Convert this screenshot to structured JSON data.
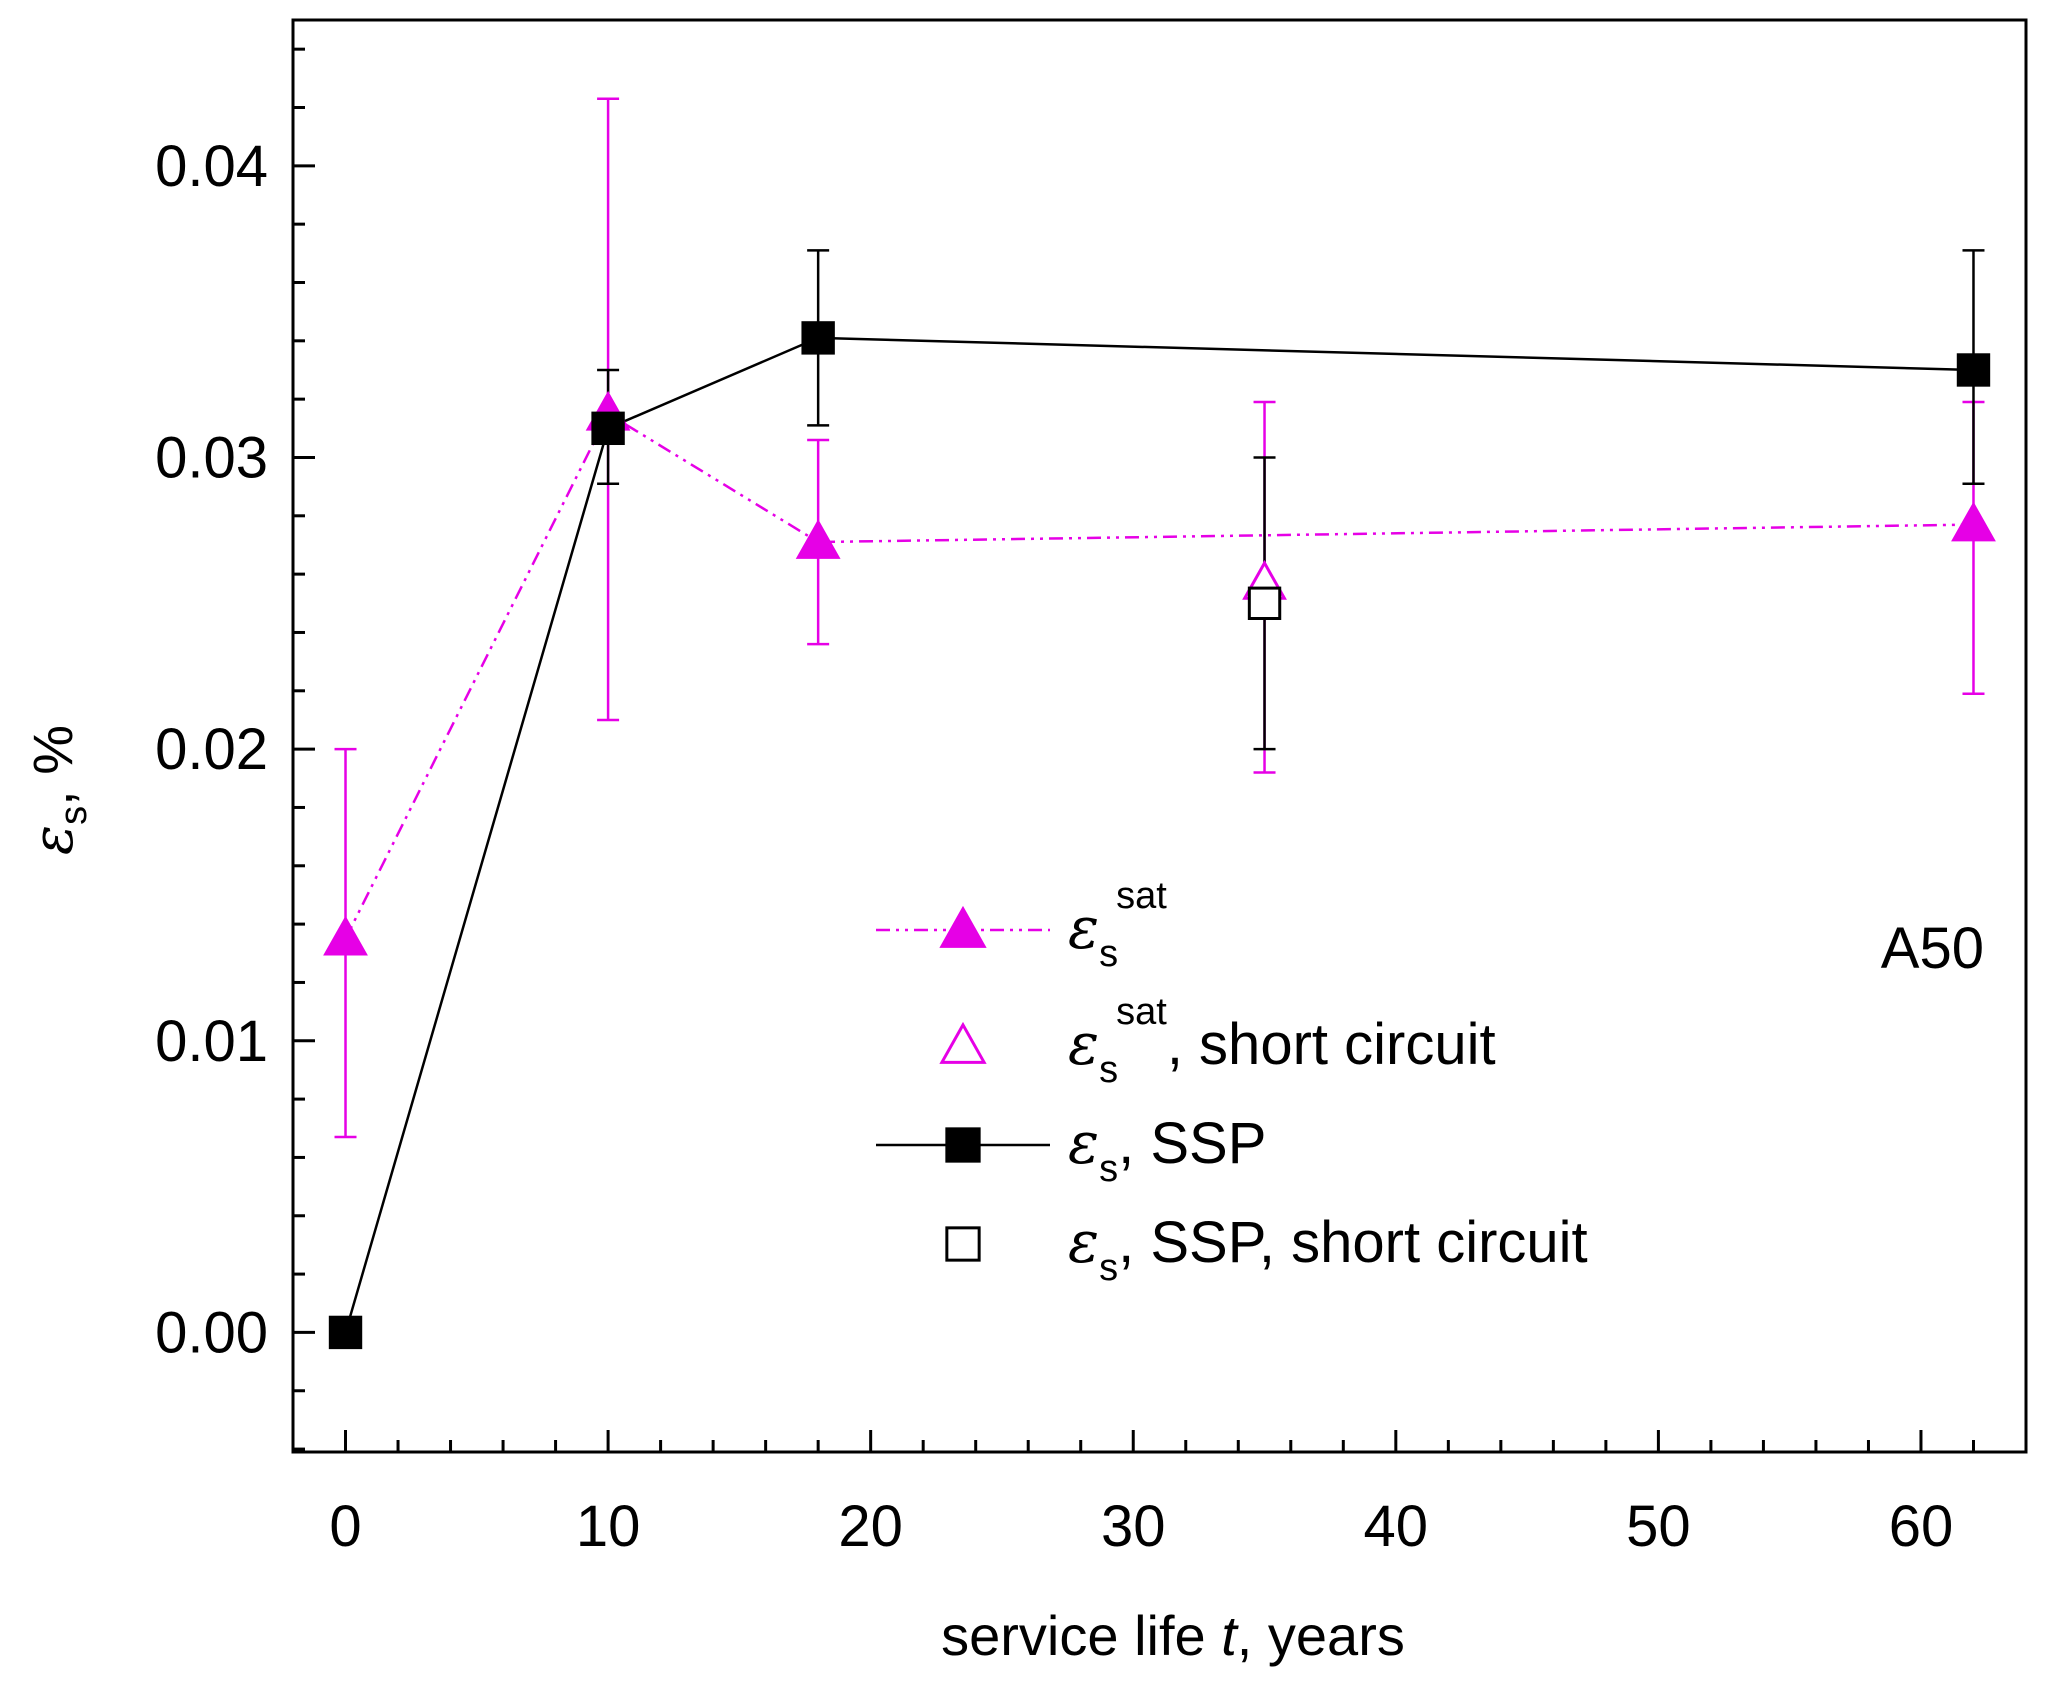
{
  "chart_data": {
    "type": "scatter",
    "title": "",
    "annotation": "A50",
    "xlabel": {
      "before": "service life ",
      "var": "t",
      "after": ", years"
    },
    "ylabel": {
      "var": "ε",
      "sub": "s",
      "after": ", %"
    },
    "xlim": [
      -2.0,
      64.0
    ],
    "ylim": [
      -0.0041,
      0.045
    ],
    "xticks": [
      0,
      10,
      20,
      30,
      40,
      50,
      60
    ],
    "xtick_labels": [
      "0",
      "10",
      "20",
      "30",
      "40",
      "50",
      "60"
    ],
    "x_minor_step": 2,
    "yticks": [
      0.0,
      0.01,
      0.02,
      0.03,
      0.04
    ],
    "ytick_labels": [
      "0.00",
      "0.01",
      "0.02",
      "0.03",
      "0.04"
    ],
    "y_minor_step": 0.002,
    "grid": false,
    "legend_position": "center-right",
    "series": [
      {
        "name": "εs sat",
        "legend": {
          "var": "ε",
          "sub": "s",
          "sup": "sat",
          "after": ""
        },
        "color": "#e600e6",
        "marker": "triangle-filled",
        "line": "dash-dot-dot",
        "x": [
          0,
          10,
          18,
          62
        ],
        "y": [
          0.0135,
          0.0315,
          0.0271,
          0.0277
        ],
        "err_low": [
          0.0067,
          0.021,
          0.0236,
          0.0219
        ],
        "err_high": [
          0.02,
          0.0423,
          0.0306,
          0.0319
        ]
      },
      {
        "name": "εs sat, short circuit",
        "legend": {
          "var": "ε",
          "sub": "s",
          "sup": "sat",
          "after": ", short circuit"
        },
        "color": "#e600e6",
        "marker": "triangle-open",
        "line": "none",
        "x": [
          35
        ],
        "y": [
          0.0257
        ],
        "err_low": [
          0.0192
        ],
        "err_high": [
          0.0319
        ]
      },
      {
        "name": "εs, SSP",
        "legend": {
          "var": "ε",
          "sub": "s",
          "sup": "",
          "after": ", SSP"
        },
        "color": "#000000",
        "marker": "square-filled",
        "line": "solid",
        "x": [
          0,
          10,
          18,
          62
        ],
        "y": [
          0.0,
          0.031,
          0.0341,
          0.033
        ],
        "err_low": [
          0.0,
          0.0291,
          0.0311,
          0.0291
        ],
        "err_high": [
          0.0,
          0.033,
          0.0371,
          0.0371
        ]
      },
      {
        "name": "εs, SSP, short circuit",
        "legend": {
          "var": "ε",
          "sub": "s",
          "sup": "",
          "after": ", SSP, short circuit"
        },
        "color": "#000000",
        "marker": "square-open",
        "line": "none",
        "x": [
          35
        ],
        "y": [
          0.025
        ],
        "err_low": [
          0.02
        ],
        "err_high": [
          0.03
        ]
      }
    ]
  }
}
